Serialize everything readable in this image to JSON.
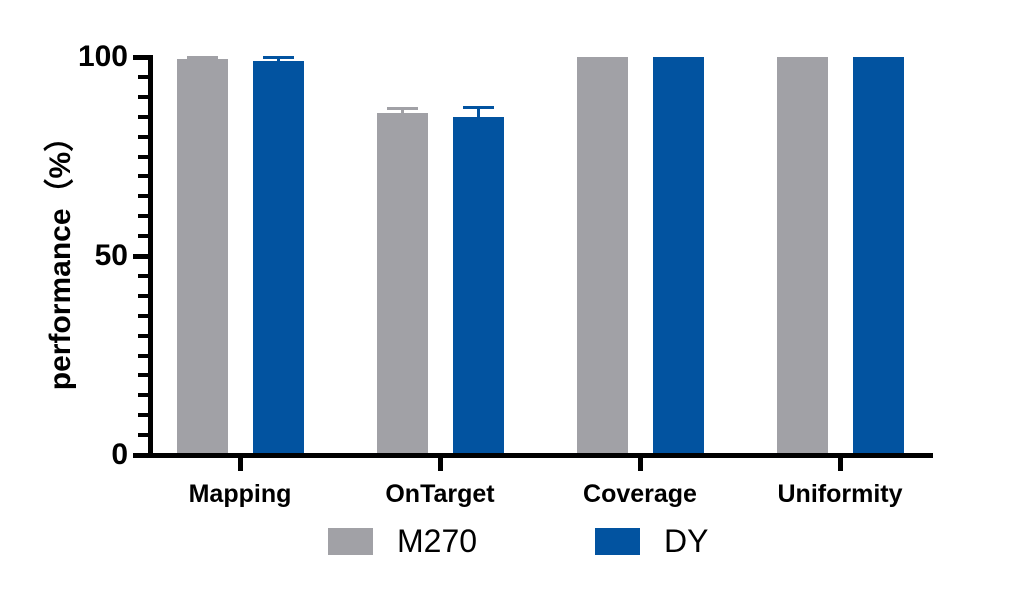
{
  "chart_data": {
    "type": "bar",
    "title": "",
    "ylabel": "performance（%）",
    "xlabel": "",
    "categories": [
      "Mapping",
      "OnTarget",
      "Coverage",
      "Uniformity"
    ],
    "series": [
      {
        "name": "M270",
        "color": "#a1a1a6",
        "values": [
          99.4,
          86.0,
          100,
          100
        ],
        "errors_plus": [
          0.6,
          1.2,
          0,
          0
        ]
      },
      {
        "name": "DY",
        "color": "#0253a0",
        "values": [
          99.0,
          84.8,
          100,
          100
        ],
        "errors_plus": [
          0.9,
          2.6,
          0,
          0
        ]
      }
    ],
    "ylim": [
      0,
      100
    ],
    "yticks": [
      0,
      50,
      100
    ],
    "minor_tick_step": 5,
    "grid": false,
    "legend_position": "bottom-center",
    "axis_color": "#000000",
    "background_color": "#ffffff"
  }
}
